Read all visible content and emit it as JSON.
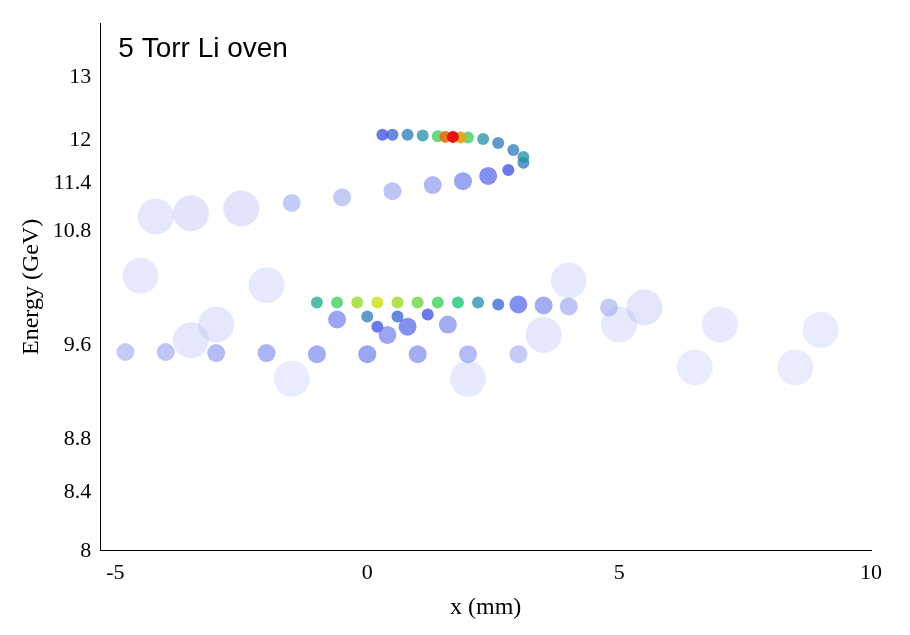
{
  "chart_data": {
    "type": "scatter",
    "title": "5 Torr Li oven",
    "x_label": "x (mm)",
    "y_label": "Energy (GeV)",
    "x": [
      -3.0,
      -2.0,
      -4.5,
      3.5,
      5.0,
      7.0,
      9.0,
      4.0,
      6.5,
      8.5,
      2.0,
      -1.5,
      -3.5,
      -4.8,
      -4.0,
      -3.0,
      -2.0,
      -1.0,
      0.0,
      1.0,
      2.0,
      3.0,
      0.0,
      0.6,
      1.2,
      0.2,
      0.8,
      0.4,
      1.6,
      -0.6,
      -1.0,
      -0.6,
      -0.2,
      0.2,
      0.6,
      1.0,
      1.4,
      1.8,
      2.2,
      2.6,
      3.0,
      3.5,
      4.0,
      4.8,
      5.5,
      -4.2,
      -3.5,
      -2.5,
      -1.5,
      -0.5,
      0.5,
      1.3,
      1.9,
      2.4,
      2.8,
      3.1,
      3.1,
      2.9,
      2.6,
      2.3,
      0.3,
      0.5,
      0.8,
      1.1,
      1.4,
      2.0,
      1.85,
      1.55,
      1.7
    ],
    "values": [
      9.8,
      10.2,
      10.3,
      9.7,
      9.8,
      9.8,
      9.75,
      10.25,
      9.4,
      9.4,
      9.3,
      9.3,
      9.65,
      9.54,
      9.54,
      9.53,
      9.53,
      9.52,
      9.52,
      9.52,
      9.52,
      9.52,
      9.88,
      9.88,
      9.9,
      9.78,
      9.78,
      9.7,
      9.8,
      9.85,
      10.02,
      10.02,
      10.02,
      10.02,
      10.02,
      10.02,
      10.02,
      10.02,
      10.02,
      10.0,
      10.0,
      9.99,
      9.98,
      9.97,
      9.97,
      10.98,
      11.02,
      11.08,
      11.15,
      11.22,
      11.3,
      11.38,
      11.43,
      11.5,
      11.58,
      11.68,
      11.76,
      11.86,
      11.96,
      12.02,
      12.08,
      12.08,
      12.08,
      12.07,
      12.06,
      12.04,
      12.04,
      12.05,
      12.05
    ],
    "intensity": [
      0.06,
      0.05,
      0.05,
      0.06,
      0.05,
      0.05,
      0.04,
      0.05,
      0.04,
      0.04,
      0.05,
      0.04,
      0.06,
      0.1,
      0.12,
      0.14,
      0.16,
      0.18,
      0.2,
      0.18,
      0.14,
      0.1,
      0.4,
      0.35,
      0.3,
      0.3,
      0.25,
      0.2,
      0.18,
      0.2,
      0.5,
      0.6,
      0.7,
      0.75,
      0.7,
      0.65,
      0.6,
      0.55,
      0.45,
      0.35,
      0.25,
      0.18,
      0.12,
      0.1,
      0.07,
      0.06,
      0.08,
      0.08,
      0.1,
      0.1,
      0.12,
      0.15,
      0.2,
      0.25,
      0.3,
      0.4,
      0.45,
      0.4,
      0.4,
      0.45,
      0.3,
      0.35,
      0.4,
      0.45,
      0.6,
      0.6,
      0.85,
      0.9,
      1.0
    ],
    "xlim": [
      -5.3,
      10
    ],
    "ylim": [
      8,
      14
    ],
    "xticks": [
      -5,
      0,
      5,
      10
    ],
    "yticks": [
      8,
      8.4,
      8.8,
      9.6,
      10.8,
      11.4,
      12,
      13
    ],
    "grid": false
  }
}
